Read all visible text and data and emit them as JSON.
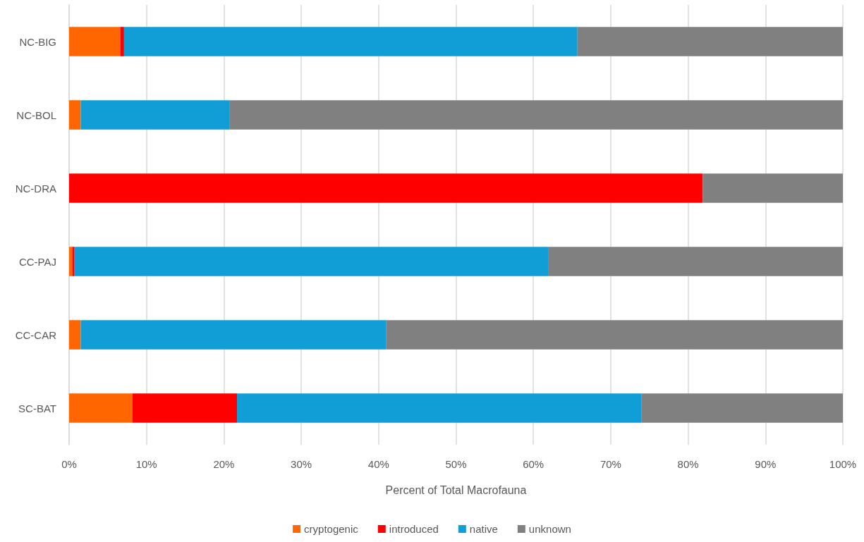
{
  "chart_data": {
    "type": "bar",
    "orientation": "horizontal",
    "stacked": true,
    "xlabel": "Percent of Total Macrofauna",
    "categories": [
      "NC-BIG",
      "NC-BOL",
      "NC-DRA",
      "CC-PAJ",
      "CC-CAR",
      "SC-BAT"
    ],
    "series": [
      {
        "name": "cryptogenic",
        "color": "#ff6600",
        "values": [
          6.6,
          1.5,
          0,
          0.4,
          1.5,
          8.2
        ]
      },
      {
        "name": "introduced",
        "color": "#ff0000",
        "values": [
          0.5,
          0,
          81.9,
          0.3,
          0,
          13.5
        ]
      },
      {
        "name": "native",
        "color": "#119dd5",
        "values": [
          58.6,
          19.2,
          0,
          61.2,
          39.5,
          52.3
        ]
      },
      {
        "name": "unknown",
        "color": "#808080",
        "values": [
          34.3,
          79.3,
          18.1,
          38.1,
          59.0,
          26.0
        ]
      }
    ],
    "xlim": [
      0,
      100
    ],
    "xticks": [
      {
        "value": 0,
        "label": "0%"
      },
      {
        "value": 10,
        "label": "10%"
      },
      {
        "value": 20,
        "label": "20%"
      },
      {
        "value": 30,
        "label": "30%"
      },
      {
        "value": 40,
        "label": "40%"
      },
      {
        "value": 50,
        "label": "50%"
      },
      {
        "value": 60,
        "label": "60%"
      },
      {
        "value": 70,
        "label": "70%"
      },
      {
        "value": 80,
        "label": "80%"
      },
      {
        "value": 90,
        "label": "90%"
      },
      {
        "value": 100,
        "label": "100%"
      }
    ],
    "grid": "x",
    "legend": "bottom"
  }
}
